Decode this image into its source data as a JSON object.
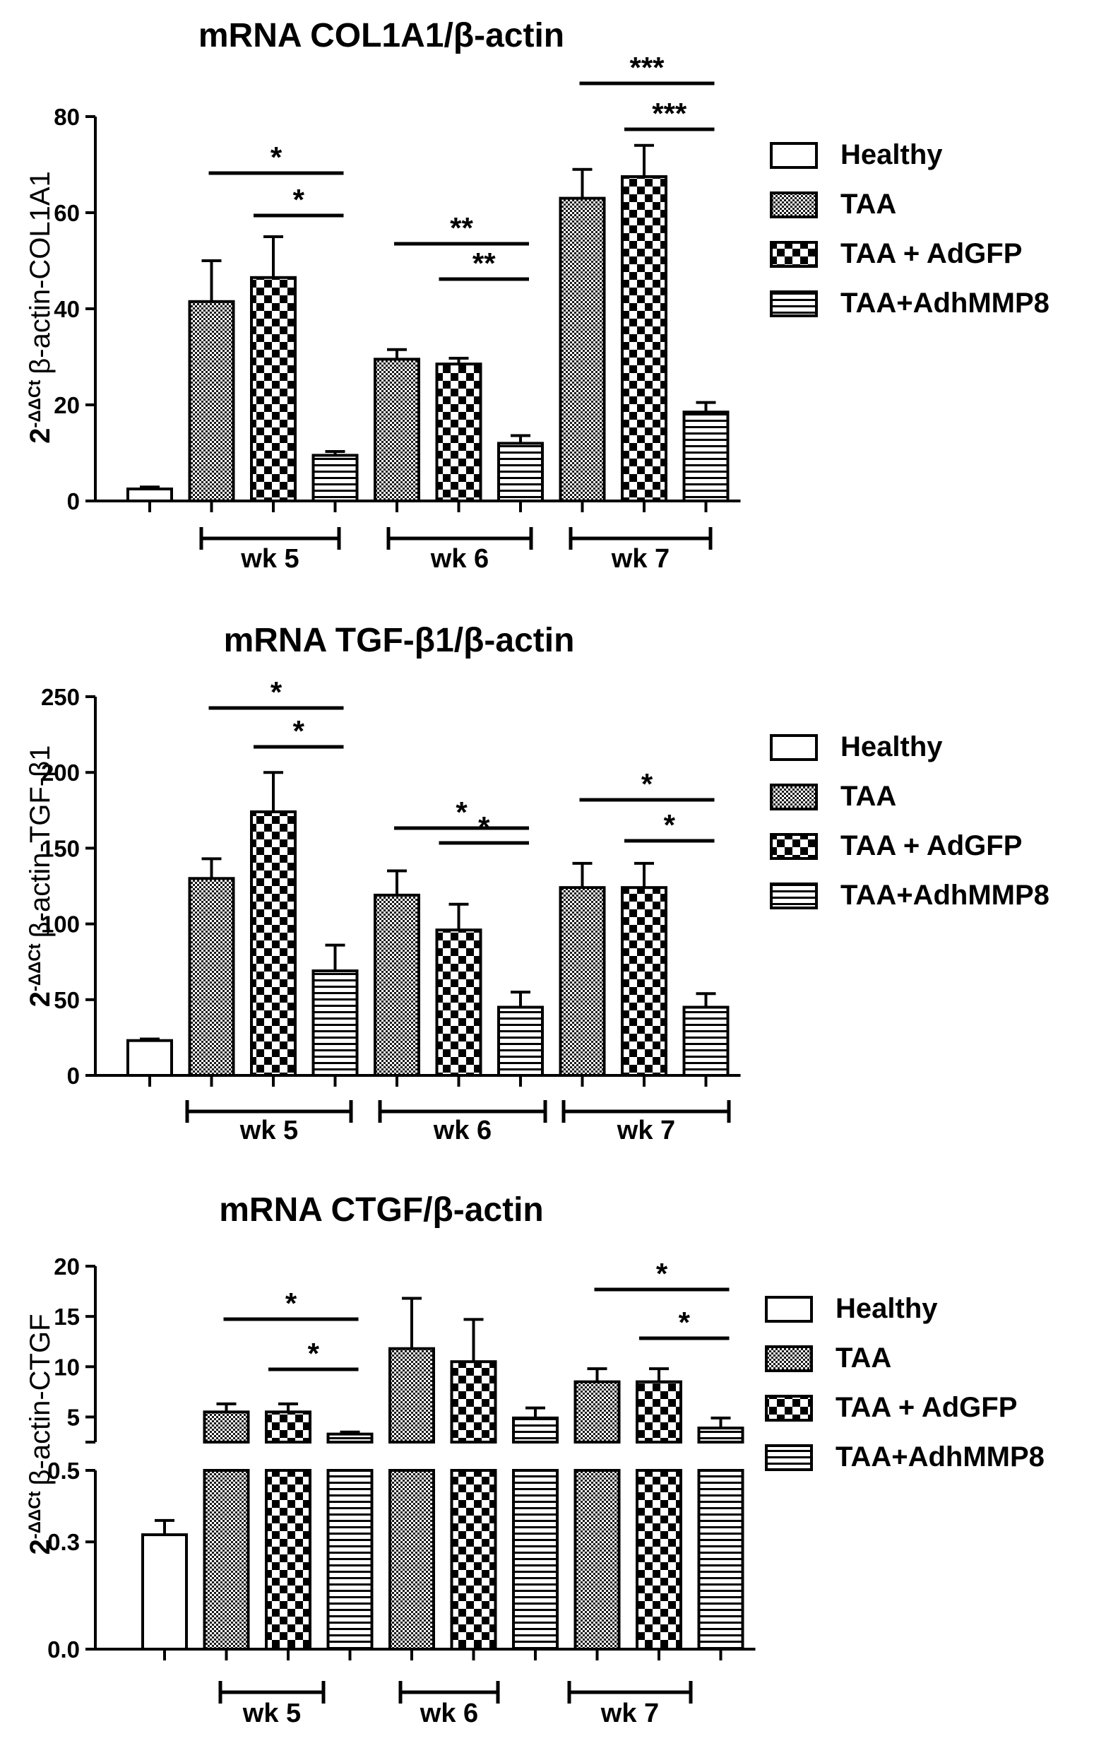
{
  "legend": [
    "Healthy",
    "TAA",
    "TAA + AdGFP",
    "TAA+AdhMMP8"
  ],
  "group_labels": [
    "wk 5",
    "wk 6",
    "wk 7"
  ],
  "chart_data": [
    {
      "type": "bar",
      "title": "mRNA COL1A1/β-actin",
      "ylabel_prefix": "2",
      "ylabel_sup": "-ΔΔCt",
      "ylabel": "β-actin-COL1A1",
      "ylim": [
        0,
        80
      ],
      "yticks": [
        "0",
        "20",
        "40",
        "60",
        "80"
      ],
      "categories": [
        "Healthy",
        "TAA wk 5",
        "TAA + AdGFP wk 5",
        "TAA+AdhMMP8 wk 5",
        "TAA wk 6",
        "TAA + AdGFP wk 6",
        "TAA+AdhMMP8 wk 6",
        "TAA wk 7",
        "TAA + AdGFP wk 7",
        "TAA+AdhMMP8 wk 7"
      ],
      "values": [
        2.5,
        41.5,
        46.5,
        9.5,
        29.5,
        28.5,
        12,
        63,
        67.5,
        18.5
      ],
      "errors": [
        0.4,
        8.5,
        8.5,
        0.8,
        2,
        1.2,
        1.6,
        6,
        6.5,
        2
      ],
      "significance": [
        {
          "from": 1,
          "to": 3,
          "level": 2,
          "label": "*"
        },
        {
          "from": 2,
          "to": 3,
          "level": 1,
          "label": "*"
        },
        {
          "from": 4,
          "to": 6,
          "level": 2,
          "label": "**"
        },
        {
          "from": 5,
          "to": 6,
          "level": 1,
          "label": "**"
        },
        {
          "from": 7,
          "to": 9,
          "level": 2,
          "label": "***"
        },
        {
          "from": 8,
          "to": 9,
          "level": 1,
          "label": "***"
        }
      ]
    },
    {
      "type": "bar",
      "title": "mRNA TGF-β1/β-actin",
      "ylabel_prefix": "2",
      "ylabel_sup": "-ΔΔCt",
      "ylabel": "β-actin-TGF-β1",
      "ylim": [
        0,
        250
      ],
      "yticks": [
        "0",
        "50",
        "100",
        "150",
        "200",
        "250"
      ],
      "categories": [
        "Healthy",
        "TAA wk 5",
        "TAA + AdGFP wk 5",
        "TAA+AdhMMP8 wk 5",
        "TAA wk 6",
        "TAA + AdGFP wk 6",
        "TAA+AdhMMP8 wk 6",
        "TAA wk 7",
        "TAA + AdGFP wk 7",
        "TAA+AdhMMP8 wk 7"
      ],
      "values": [
        23,
        130,
        174,
        69,
        119,
        96,
        45,
        124,
        124,
        45
      ],
      "errors": [
        1,
        13,
        26,
        17,
        16,
        17,
        10,
        16,
        16,
        9
      ],
      "significance": [
        {
          "from": 1,
          "to": 3,
          "level": 2,
          "label": "*"
        },
        {
          "from": 2,
          "to": 3,
          "level": 1,
          "label": "*"
        },
        {
          "from": 4,
          "to": 6,
          "level": 2,
          "label": "*"
        },
        {
          "from": 5,
          "to": 6,
          "level": 1,
          "label": "*"
        },
        {
          "from": 7,
          "to": 9,
          "level": 2,
          "label": "*"
        },
        {
          "from": 8,
          "to": 9,
          "level": 1,
          "label": "*"
        }
      ]
    },
    {
      "type": "bar",
      "title": "mRNA CTGF/β-actin",
      "ylabel_prefix": "2",
      "ylabel_sup": "-ΔΔCt",
      "ylabel": "β-actin-CTGF",
      "broken_axis": true,
      "ylim_lower": [
        0,
        0.5
      ],
      "yticks_lower": [
        "0.0",
        "0.3",
        "0.5"
      ],
      "ylim_upper": [
        2.5,
        20
      ],
      "yticks_upper": [
        "5",
        "10",
        "15",
        "20"
      ],
      "categories": [
        "Healthy",
        "TAA wk 5",
        "TAA + AdGFP wk 5",
        "TAA+AdhMMP8 wk 5",
        "TAA wk 6",
        "TAA + AdGFP wk 6",
        "TAA+AdhMMP8 wk 6",
        "TAA wk 7",
        "TAA + AdGFP wk 7",
        "TAA+AdhMMP8 wk 7"
      ],
      "values": [
        0.32,
        5.5,
        5.5,
        3.3,
        11.8,
        10.5,
        4.9,
        8.5,
        8.5,
        3.9
      ],
      "errors": [
        0.04,
        0.8,
        0.8,
        0.2,
        5,
        4.2,
        1,
        1.3,
        1.3,
        1
      ],
      "significance": [
        {
          "from": 1,
          "to": 3,
          "level": 2,
          "label": "*"
        },
        {
          "from": 2,
          "to": 3,
          "level": 1,
          "label": "*"
        },
        {
          "from": 7,
          "to": 9,
          "level": 2,
          "label": "*"
        },
        {
          "from": 8,
          "to": 9,
          "level": 1,
          "label": "*"
        }
      ]
    }
  ]
}
